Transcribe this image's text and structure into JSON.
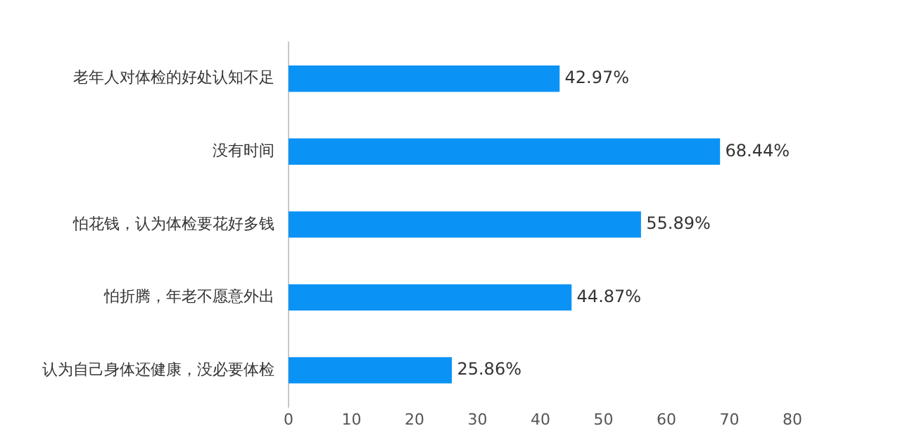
{
  "chart_data": {
    "type": "bar",
    "orientation": "horizontal",
    "categories": [
      "老年人对体检的好处认知不足",
      "没有时间",
      "怕花钱，认为体检要花好多钱",
      "怕折腾，年老不愿意外出",
      "认为自己身体还健康，没必要体检"
    ],
    "values": [
      42.97,
      68.44,
      55.89,
      44.87,
      25.86
    ],
    "value_labels": [
      "42.97%",
      "68.44%",
      "55.89%",
      "44.87%",
      "25.86%"
    ],
    "color": "#0a93f5",
    "xlim": [
      0,
      80
    ],
    "xticks": [
      0,
      10,
      20,
      30,
      40,
      50,
      60,
      70,
      80
    ],
    "grid": false,
    "legend": false
  }
}
